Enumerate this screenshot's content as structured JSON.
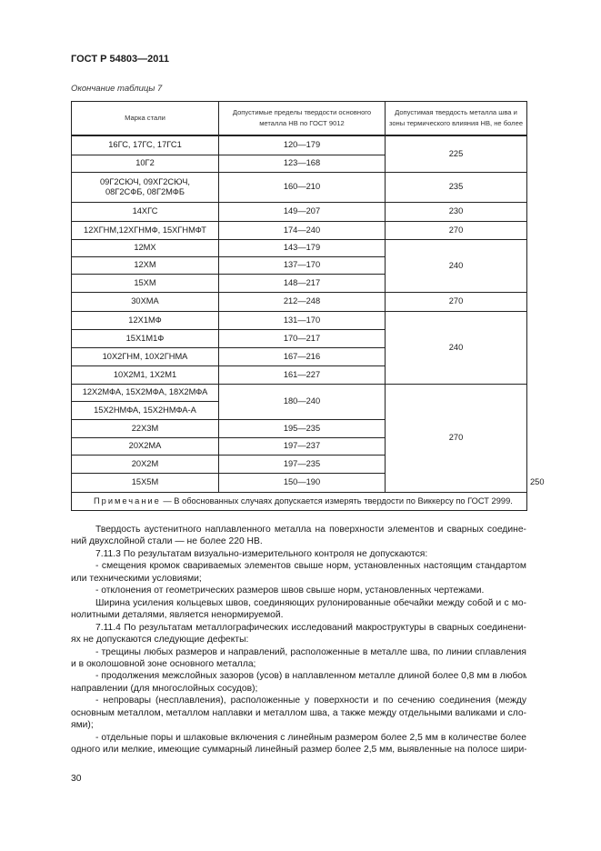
{
  "header": {
    "doc_id": "ГОСТ Р 54803—2011",
    "table_caption": "Окончание таблицы 7"
  },
  "table": {
    "columns": [
      "Марка стали",
      "Допустимые пределы твердости основного металла НВ по ГОСТ 9012",
      "Допустимая твердость металла шва и зоны термического влияния НВ, не более"
    ],
    "rows": [
      {
        "grade": "16ГС, 17ГС, 17ГС1",
        "range": "120—179",
        "hardness": "225",
        "hardness_rowspan": 2
      },
      {
        "grade": "10Г2",
        "range": "123—168"
      },
      {
        "grade": "09Г2СЮЧ, 09ХГ2СЮЧ, 08Г2СФБ, 08Г2МФБ",
        "range": "160—210",
        "hardness": "235",
        "hardness_rowspan": 1
      },
      {
        "grade": "14ХГС",
        "range": "149—207",
        "hardness": "230",
        "hardness_rowspan": 1
      },
      {
        "grade": "12ХГНМ,12ХГНМФ, 15ХГНМФТ",
        "range": "174—240",
        "hardness": "270",
        "hardness_rowspan": 1
      },
      {
        "grade": "12МХ",
        "range": "143—179",
        "hardness": "240",
        "hardness_rowspan": 3
      },
      {
        "grade": "12ХМ",
        "range": "137—170"
      },
      {
        "grade": "15ХМ",
        "range": "148—217"
      },
      {
        "grade": "30ХМА",
        "range": "212—248",
        "hardness": "270",
        "hardness_rowspan": 1
      },
      {
        "grade": "12Х1МФ",
        "range": "131—170",
        "hardness": "240",
        "hardness_rowspan": 4
      },
      {
        "grade": "15Х1М1Ф",
        "range": "170—217"
      },
      {
        "grade": "10Х2ГНМ, 10Х2ГНМА",
        "range": "167—216"
      },
      {
        "grade": "10Х2М1, 1Х2М1",
        "range": "161—227"
      },
      {
        "grade": "12Х2МФА, 15Х2МФА, 18Х2МФА",
        "range": "180—240",
        "range_rowspan": 2,
        "hardness": "270",
        "hardness_rowspan": 6
      },
      {
        "grade": "15Х2НМФА, 15Х2НМФА-А",
        "range_spanned": true
      },
      {
        "grade": "22Х3М",
        "range": "195—235"
      },
      {
        "grade": "20Х2МА",
        "range": "197—237"
      },
      {
        "grade": "20Х2М",
        "range": "197—235"
      },
      {
        "grade": "15Х5М",
        "range": "150—190",
        "hardness": "250",
        "hardness_rowspan": 1
      }
    ],
    "note_label": "Примечание",
    "note_text": " — В обоснованных случаях допускается измерять твердости по Виккерсу по ГОСТ 2999."
  },
  "body": {
    "paragraphs": [
      [
        "Твердость аустенитного наплавленного металла на поверхности элементов и сварных соедине-",
        "ний двухслойной стали — не более 220 НВ."
      ],
      [
        "7.11.3  По результатам визуально-измерительного контроля не допускаются:"
      ],
      [
        "- смещения кромок свариваемых элементов свыше норм, установленных настоящим стандартом",
        "или техническими условиями;"
      ],
      [
        "- отклонения от геометрических размеров швов свыше норм, установленных чертежами."
      ],
      [
        "Ширина усиления кольцевых швов, соединяющих рулонированные обечайки между собой и с мо-",
        "нолитными деталями, является ненормируемой."
      ],
      [
        "7.11.4  По результатам металлографических исследований макроструктуры в сварных соединени-",
        "ях не допускаются следующие дефекты:"
      ],
      [
        "- трещины любых размеров и направлений, расположенные в металле шва, по линии сплавления",
        "и в околошовной зоне основного металла;"
      ],
      [
        "- продолжения межслойных зазоров (усов) в наплавленном металле длиной более 0,8 мм в любом",
        "направлении (для многослойных сосудов);"
      ],
      [
        "- непровары (несплавления), расположенные у поверхности и по сечению соединения (между",
        "основным металлом, металлом наплавки и металлом шва, а также между отдельными валиками и сло-",
        "ями);"
      ],
      [
        "- отдельные поры и шлаковые включения с линейным размером более 2,5 мм в количестве более",
        "одного или мелкие, имеющие суммарный линейный размер более 2,5 мм, выявленные на полосе шири-"
      ]
    ],
    "continues_on_next_page": true
  },
  "footer": {
    "page_number": "30"
  }
}
